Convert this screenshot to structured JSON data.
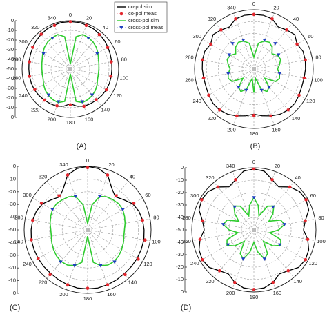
{
  "chart_data": [
    {
      "type": "polar",
      "caption": "(A)",
      "rlim": [
        -50,
        0
      ],
      "rticks": [
        0,
        -10,
        -20,
        -30,
        -40,
        -50
      ],
      "radial_labels": true,
      "legend": true,
      "angle_ticks": [
        0,
        20,
        40,
        60,
        80,
        100,
        120,
        140,
        160,
        180,
        200,
        220,
        240,
        260,
        280,
        300,
        320,
        340
      ],
      "theta": [
        0,
        10,
        20,
        30,
        40,
        50,
        60,
        70,
        80,
        90,
        100,
        110,
        120,
        130,
        140,
        150,
        160,
        170,
        180,
        190,
        200,
        210,
        220,
        230,
        240,
        250,
        260,
        270,
        280,
        290,
        300,
        310,
        320,
        330,
        340,
        350
      ],
      "series": [
        {
          "name": "co-pol sim",
          "color": "#000000",
          "style": "line",
          "values": [
            -1,
            -1,
            -1.5,
            -2,
            -3,
            -4,
            -5,
            -6,
            -6.5,
            -7,
            -7,
            -7,
            -7,
            -7.5,
            -8,
            -8.5,
            -9,
            -11,
            -14,
            -11,
            -9,
            -8.5,
            -8,
            -7.5,
            -7,
            -7,
            -7,
            -7,
            -6.5,
            -6,
            -5,
            -4,
            -3,
            -2,
            -1.5,
            -1
          ]
        },
        {
          "name": "co-pol meas",
          "color": "#e3262d",
          "style": "dot",
          "theta": [
            0,
            20,
            40,
            60,
            80,
            100,
            120,
            140,
            160,
            180,
            200,
            220,
            240,
            260,
            280,
            300,
            320,
            340
          ],
          "values": [
            -1,
            -2,
            -3.5,
            -5.5,
            -7,
            -7.5,
            -7,
            -8.5,
            -9,
            -13,
            -9.5,
            -8,
            -7.5,
            -7,
            -7,
            -5,
            -3,
            -2
          ]
        },
        {
          "name": "cross-pol sim",
          "color": "#2ecc2e",
          "style": "line",
          "values": [
            -45,
            -16,
            -12,
            -12.5,
            -13.5,
            -15,
            -17,
            -19,
            -20,
            -20.5,
            -20.5,
            -20,
            -18,
            -16,
            -14.5,
            -13.5,
            -13,
            -16,
            -45,
            -16,
            -13,
            -13.5,
            -14.5,
            -16,
            -18,
            -20,
            -20.5,
            -20.5,
            -20,
            -19,
            -17,
            -15,
            -13.5,
            -12.5,
            -12,
            -16
          ]
        },
        {
          "name": "cross-pol meas",
          "color": "#1f3fbf",
          "style": "triangle",
          "theta": [
            30,
            60,
            140,
            160,
            200,
            220,
            300,
            330
          ],
          "values": [
            -13,
            -18,
            -15,
            -14,
            -14,
            -15,
            -18,
            -13
          ]
        }
      ]
    },
    {
      "type": "polar",
      "caption": "(B)",
      "rlim": [
        -50,
        0
      ],
      "rticks": [
        0,
        -10,
        -20,
        -30,
        -40,
        -50
      ],
      "radial_labels": false,
      "legend": false,
      "angle_ticks": [
        0,
        20,
        40,
        60,
        80,
        100,
        120,
        140,
        160,
        180,
        200,
        220,
        240,
        260,
        280,
        300,
        320,
        340
      ],
      "theta": [
        0,
        10,
        20,
        30,
        40,
        50,
        60,
        70,
        80,
        90,
        100,
        110,
        120,
        130,
        140,
        150,
        160,
        170,
        180,
        190,
        200,
        210,
        220,
        230,
        240,
        250,
        260,
        270,
        280,
        290,
        300,
        310,
        320,
        330,
        340,
        350
      ],
      "series": [
        {
          "name": "co-pol sim",
          "color": "#000000",
          "style": "line",
          "values": [
            -4,
            -4,
            -5,
            -9,
            -7,
            -5,
            -8,
            -6,
            -6,
            -6.5,
            -7,
            -7,
            -6,
            -5,
            -5,
            -6,
            -8,
            -10,
            -12,
            -10,
            -8,
            -6,
            -5,
            -5,
            -6,
            -7,
            -7,
            -6.5,
            -6,
            -6,
            -8,
            -5,
            -7,
            -9,
            -5,
            -4
          ]
        },
        {
          "name": "co-pol meas",
          "color": "#e3262d",
          "style": "dot",
          "theta": [
            0,
            20,
            40,
            60,
            80,
            100,
            120,
            140,
            160,
            180,
            200,
            220,
            240,
            260,
            280,
            300,
            320,
            340
          ],
          "values": [
            -4,
            -5,
            -7,
            -8,
            -6,
            -7,
            -6,
            -5,
            -8,
            -11,
            -8,
            -5,
            -6,
            -7,
            -6,
            -8,
            -7,
            -5
          ]
        },
        {
          "name": "cross-pol sim",
          "color": "#2ecc2e",
          "style": "line",
          "values": [
            -40,
            -28,
            -25,
            -24,
            -26,
            -30,
            -27,
            -26,
            -28,
            -30,
            -28,
            -27,
            -29,
            -38,
            -30,
            -28,
            -32,
            -42,
            -30,
            -42,
            -32,
            -28,
            -30,
            -38,
            -29,
            -27,
            -28,
            -30,
            -28,
            -26,
            -27,
            -30,
            -26,
            -24,
            -25,
            -28
          ]
        },
        {
          "name": "cross-pol meas",
          "color": "#1f3fbf",
          "style": "triangle",
          "theta": [
            20,
            40,
            60,
            100,
            140,
            160,
            200,
            220,
            260,
            300,
            320,
            340
          ],
          "values": [
            -24,
            -22,
            -26,
            -28,
            -30,
            -31,
            -31,
            -30,
            -28,
            -26,
            -22,
            -24
          ]
        }
      ]
    },
    {
      "type": "polar",
      "caption": "(C)",
      "rlim": [
        -50,
        0
      ],
      "rticks": [
        0,
        -10,
        -20,
        -30,
        -40,
        -50
      ],
      "radial_labels": true,
      "legend": false,
      "angle_ticks": [
        0,
        20,
        40,
        60,
        80,
        100,
        120,
        140,
        160,
        180,
        200,
        220,
        240,
        260,
        280,
        300,
        320,
        340
      ],
      "theta": [
        0,
        10,
        20,
        30,
        40,
        50,
        60,
        70,
        80,
        90,
        100,
        110,
        120,
        130,
        140,
        150,
        160,
        170,
        180,
        190,
        200,
        210,
        220,
        230,
        240,
        250,
        260,
        270,
        280,
        290,
        300,
        310,
        320,
        330,
        340,
        350
      ],
      "series": [
        {
          "name": "co-pol sim",
          "color": "#000000",
          "style": "line",
          "values": [
            0,
            -1,
            -4,
            -12,
            -16,
            -13,
            -9,
            -7,
            -6,
            -5.5,
            -5,
            -5,
            -5,
            -5,
            -5,
            -4.5,
            -4,
            -3.5,
            -3.5,
            -3.5,
            -4,
            -4.5,
            -5,
            -5,
            -5,
            -5,
            -5,
            -5.5,
            -6,
            -7,
            -9,
            -13,
            -16,
            -12,
            -4,
            -1
          ]
        },
        {
          "name": "co-pol meas",
          "color": "#e3262d",
          "style": "dot",
          "theta": [
            0,
            20,
            40,
            60,
            80,
            100,
            120,
            140,
            160,
            180,
            200,
            220,
            240,
            260,
            280,
            300,
            320,
            340
          ],
          "values": [
            -1,
            -4,
            -15,
            -8,
            -6,
            -4,
            -4,
            -4,
            -4,
            -4,
            -4,
            -4,
            -5,
            -5,
            -6,
            -8,
            -15,
            -4
          ]
        },
        {
          "name": "cross-pol sim",
          "color": "#2ecc2e",
          "style": "line",
          "values": [
            -45,
            -30,
            -22,
            -20,
            -19,
            -18,
            -18,
            -19,
            -20,
            -21,
            -21,
            -20,
            -19,
            -18,
            -17.5,
            -18,
            -20,
            -24,
            -45,
            -24,
            -20,
            -18,
            -17.5,
            -18,
            -19,
            -20,
            -21,
            -21,
            -20,
            -19,
            -18,
            -18,
            -19,
            -20,
            -22,
            -30
          ]
        },
        {
          "name": "cross-pol meas",
          "color": "#1f3fbf",
          "style": "triangle",
          "theta": [
            20,
            60,
            140,
            160,
            200,
            220,
            300,
            340
          ],
          "values": [
            -22,
            -18,
            -17,
            -20,
            -20,
            -17,
            -18,
            -22
          ]
        }
      ]
    },
    {
      "type": "polar",
      "caption": "(D)",
      "rlim": [
        -50,
        0
      ],
      "rticks": [
        0,
        -10,
        -20,
        -30,
        -40,
        -50
      ],
      "radial_labels": true,
      "legend": false,
      "angle_ticks": [
        0,
        20,
        40,
        60,
        80,
        100,
        120,
        140,
        160,
        180,
        200,
        220,
        240,
        260,
        280,
        300,
        320,
        340
      ],
      "theta": [
        0,
        10,
        20,
        30,
        40,
        50,
        60,
        70,
        80,
        90,
        100,
        110,
        120,
        130,
        140,
        150,
        160,
        170,
        180,
        190,
        200,
        210,
        220,
        230,
        240,
        250,
        260,
        270,
        280,
        290,
        300,
        310,
        320,
        330,
        340,
        350
      ],
      "series": [
        {
          "name": "co-pol sim",
          "color": "#000000",
          "style": "line",
          "values": [
            -1,
            -2,
            -7,
            -10,
            -5,
            -2,
            -1.5,
            -3,
            -8,
            -10,
            -6,
            -3,
            -2,
            -3,
            -7,
            -9,
            -5,
            -2.5,
            -2,
            -2.5,
            -5,
            -9,
            -7,
            -3,
            -2,
            -3,
            -6,
            -10,
            -8,
            -3,
            -1.5,
            -2,
            -5,
            -10,
            -7,
            -2
          ]
        },
        {
          "name": "co-pol meas",
          "color": "#e3262d",
          "style": "dot",
          "theta": [
            0,
            20,
            40,
            60,
            80,
            100,
            120,
            140,
            160,
            180,
            200,
            220,
            240,
            260,
            280,
            300,
            320,
            340
          ],
          "values": [
            -1,
            -7,
            -5,
            -1.5,
            -8,
            -6,
            -2,
            -7,
            -5,
            -2,
            -5,
            -7,
            -2,
            -6,
            -8,
            -1.5,
            -5,
            -7
          ]
        },
        {
          "name": "cross-pol sim",
          "color": "#2ecc2e",
          "style": "line",
          "values": [
            -24,
            -30,
            -38,
            -28,
            -25,
            -30,
            -36,
            -27,
            -25,
            -30,
            -37,
            -27,
            -25,
            -30,
            -38,
            -28,
            -25,
            -32,
            -40,
            -32,
            -25,
            -28,
            -38,
            -30,
            -25,
            -27,
            -37,
            -30,
            -25,
            -27,
            -36,
            -30,
            -25,
            -28,
            -38,
            -30
          ]
        },
        {
          "name": "cross-pol meas",
          "color": "#1f3fbf",
          "style": "triangle",
          "theta": [
            0,
            40,
            80,
            120,
            160,
            200,
            240,
            280,
            320
          ],
          "values": [
            -24,
            -26,
            -25,
            -26,
            -25,
            -25,
            -26,
            -25,
            -26
          ]
        }
      ]
    }
  ]
}
